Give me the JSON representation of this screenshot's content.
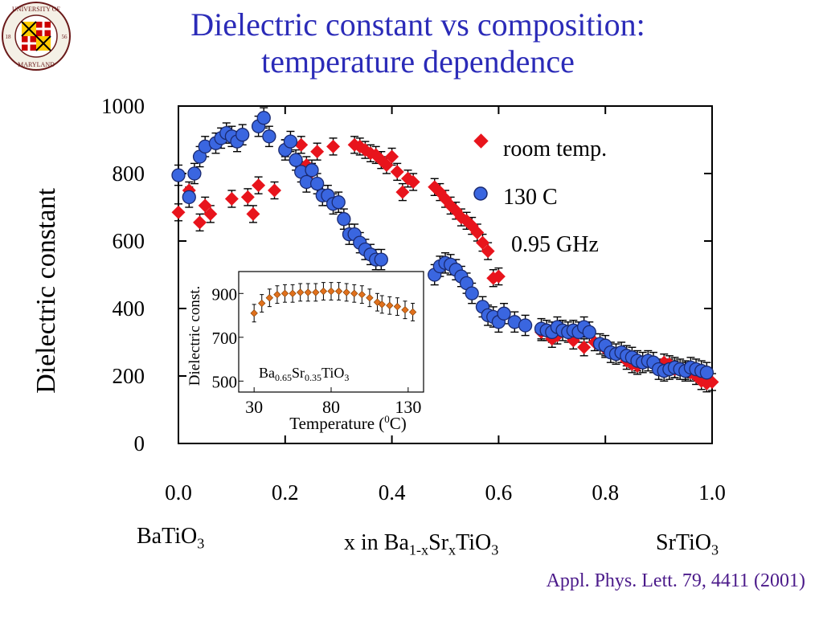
{
  "title": {
    "line1": "Dielectric constant vs composition:",
    "line2": "temperature dependence"
  },
  "logo": {
    "text_top": "UNIVERSITY OF",
    "text_bottom": "MARYLAND",
    "year_left": "18",
    "year_right": "56",
    "icon": "university-seal"
  },
  "citation": "Appl. Phys. Lett. 79, 4411 (2001)",
  "composition_labels": {
    "left": {
      "base": "BaTiO",
      "sub": "3"
    },
    "middle": {
      "prefix": "x in Ba",
      "sub1": "1-x",
      "mid": "Sr",
      "sub2": "x",
      "end": "TiO",
      "sub3": "3"
    },
    "right": {
      "base": "SrTiO",
      "sub": "3"
    }
  },
  "colors": {
    "title": "#2b2bb8",
    "citation": "#4b1a8a",
    "room_temp": "#e8141c",
    "c130": "#3a66e0",
    "inset_marker": "#e0701c"
  },
  "chart_data": [
    {
      "type": "scatter",
      "ylabel": "Dielectric constant",
      "xlabel": "",
      "xlim": [
        0.0,
        1.0
      ],
      "ylim": [
        0,
        1000
      ],
      "x_ticks": [
        "0.0",
        "0.2",
        "0.4",
        "0.6",
        "0.8",
        "1.0"
      ],
      "y_ticks": [
        "0",
        "200",
        "400",
        "600",
        "800",
        "1000"
      ],
      "grid": false,
      "legend_position": "top-right",
      "annotation": "0.95 GHz",
      "series": [
        {
          "name": "room temp.",
          "marker": "diamond",
          "error": 25,
          "points": [
            [
              0.0,
              685
            ],
            [
              0.02,
              750
            ],
            [
              0.04,
              655
            ],
            [
              0.05,
              705
            ],
            [
              0.06,
              680
            ],
            [
              0.1,
              725
            ],
            [
              0.13,
              730
            ],
            [
              0.14,
              680
            ],
            [
              0.15,
              765
            ],
            [
              0.18,
              750
            ],
            [
              0.2,
              875
            ],
            [
              0.23,
              885
            ],
            [
              0.24,
              825
            ],
            [
              0.25,
              805
            ],
            [
              0.26,
              865
            ],
            [
              0.29,
              880
            ],
            [
              0.33,
              885
            ],
            [
              0.34,
              880
            ],
            [
              0.35,
              870
            ],
            [
              0.36,
              860
            ],
            [
              0.37,
              855
            ],
            [
              0.38,
              840
            ],
            [
              0.39,
              825
            ],
            [
              0.4,
              850
            ],
            [
              0.41,
              805
            ],
            [
              0.42,
              745
            ],
            [
              0.43,
              785
            ],
            [
              0.44,
              775
            ],
            [
              0.48,
              760
            ],
            [
              0.49,
              745
            ],
            [
              0.5,
              725
            ],
            [
              0.51,
              705
            ],
            [
              0.52,
              690
            ],
            [
              0.53,
              670
            ],
            [
              0.54,
              660
            ],
            [
              0.55,
              645
            ],
            [
              0.56,
              625
            ],
            [
              0.57,
              595
            ],
            [
              0.58,
              570
            ],
            [
              0.59,
              490
            ],
            [
              0.6,
              495
            ],
            [
              0.68,
              330
            ],
            [
              0.7,
              310
            ],
            [
              0.71,
              320
            ],
            [
              0.74,
              305
            ],
            [
              0.76,
              285
            ],
            [
              0.78,
              300
            ],
            [
              0.8,
              280
            ],
            [
              0.84,
              245
            ],
            [
              0.85,
              235
            ],
            [
              0.86,
              230
            ],
            [
              0.91,
              240
            ],
            [
              0.92,
              235
            ],
            [
              0.93,
              220
            ],
            [
              0.95,
              215
            ],
            [
              0.96,
              210
            ],
            [
              0.97,
              200
            ],
            [
              0.98,
              185
            ],
            [
              0.99,
              178
            ],
            [
              1.0,
              182
            ]
          ]
        },
        {
          "name": "130 C",
          "marker": "circle",
          "error": 30,
          "points": [
            [
              0.0,
              795
            ],
            [
              0.02,
              730
            ],
            [
              0.03,
              800
            ],
            [
              0.04,
              850
            ],
            [
              0.05,
              880
            ],
            [
              0.07,
              890
            ],
            [
              0.08,
              905
            ],
            [
              0.09,
              920
            ],
            [
              0.1,
              910
            ],
            [
              0.11,
              895
            ],
            [
              0.12,
              915
            ],
            [
              0.15,
              940
            ],
            [
              0.16,
              965
            ],
            [
              0.17,
              910
            ],
            [
              0.2,
              870
            ],
            [
              0.21,
              895
            ],
            [
              0.22,
              840
            ],
            [
              0.23,
              805
            ],
            [
              0.24,
              775
            ],
            [
              0.25,
              810
            ],
            [
              0.26,
              770
            ],
            [
              0.27,
              735
            ],
            [
              0.28,
              735
            ],
            [
              0.29,
              710
            ],
            [
              0.3,
              715
            ],
            [
              0.31,
              665
            ],
            [
              0.32,
              620
            ],
            [
              0.33,
              620
            ],
            [
              0.34,
              595
            ],
            [
              0.35,
              575
            ],
            [
              0.36,
              560
            ],
            [
              0.37,
              545
            ],
            [
              0.38,
              545
            ],
            [
              0.48,
              500
            ],
            [
              0.49,
              525
            ],
            [
              0.5,
              535
            ],
            [
              0.51,
              530
            ],
            [
              0.52,
              515
            ],
            [
              0.53,
              495
            ],
            [
              0.54,
              475
            ],
            [
              0.55,
              445
            ],
            [
              0.57,
              405
            ],
            [
              0.58,
              380
            ],
            [
              0.59,
              375
            ],
            [
              0.6,
              360
            ],
            [
              0.61,
              385
            ],
            [
              0.63,
              360
            ],
            [
              0.65,
              350
            ],
            [
              0.68,
              340
            ],
            [
              0.69,
              335
            ],
            [
              0.7,
              330
            ],
            [
              0.71,
              345
            ],
            [
              0.72,
              335
            ],
            [
              0.73,
              330
            ],
            [
              0.74,
              335
            ],
            [
              0.75,
              330
            ],
            [
              0.76,
              345
            ],
            [
              0.77,
              330
            ],
            [
              0.79,
              295
            ],
            [
              0.8,
              290
            ],
            [
              0.81,
              270
            ],
            [
              0.82,
              265
            ],
            [
              0.83,
              270
            ],
            [
              0.84,
              260
            ],
            [
              0.85,
              255
            ],
            [
              0.86,
              245
            ],
            [
              0.87,
              240
            ],
            [
              0.88,
              245
            ],
            [
              0.89,
              240
            ],
            [
              0.9,
              220
            ],
            [
              0.91,
              215
            ],
            [
              0.92,
              220
            ],
            [
              0.93,
              225
            ],
            [
              0.94,
              220
            ],
            [
              0.95,
              215
            ],
            [
              0.96,
              225
            ],
            [
              0.97,
              220
            ],
            [
              0.98,
              215
            ],
            [
              0.99,
              210
            ]
          ]
        }
      ]
    },
    {
      "type": "scatter",
      "title": "Ba0.65Sr0.35TiO3",
      "title_parts": {
        "a": "Ba",
        "s1": "0.65",
        "b": "Sr",
        "s2": "0.35",
        "c": "TiO",
        "s3": "3"
      },
      "xlabel_parts": {
        "a": "Temperature (",
        "sup": "0",
        "b": "C)"
      },
      "ylabel": "Dielectric const.",
      "xlim": [
        20,
        140
      ],
      "ylim": [
        450,
        1000
      ],
      "x_ticks": [
        "30",
        "80",
        "130"
      ],
      "y_ticks": [
        "500",
        "700",
        "900"
      ],
      "series": [
        {
          "name": "",
          "marker": "diamond",
          "error": 40,
          "points": [
            [
              30,
              810
            ],
            [
              35,
              855
            ],
            [
              40,
              880
            ],
            [
              45,
              895
            ],
            [
              50,
              900
            ],
            [
              55,
              900
            ],
            [
              60,
              905
            ],
            [
              65,
              905
            ],
            [
              70,
              905
            ],
            [
              75,
              910
            ],
            [
              80,
              910
            ],
            [
              85,
              910
            ],
            [
              90,
              905
            ],
            [
              95,
              900
            ],
            [
              100,
              895
            ],
            [
              105,
              880
            ],
            [
              110,
              860
            ],
            [
              113,
              850
            ],
            [
              118,
              845
            ],
            [
              123,
              840
            ],
            [
              128,
              825
            ],
            [
              133,
              815
            ]
          ]
        }
      ]
    }
  ]
}
